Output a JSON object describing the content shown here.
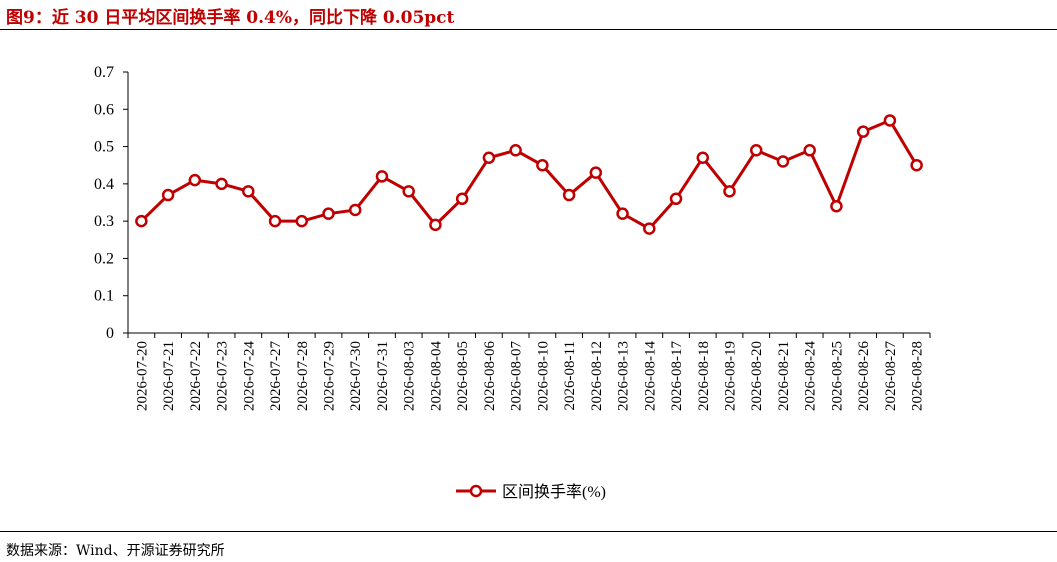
{
  "header": {
    "title": "图9：近 30 日平均区间换手率 0.4%，同比下降 0.05pct"
  },
  "footer": {
    "source": "数据来源：Wind、开源证券研究所"
  },
  "colors": {
    "series": "#c00000",
    "accent": "#c00000"
  },
  "chart_data": {
    "type": "line",
    "title": "",
    "xlabel": "",
    "ylabel": "",
    "ylim": [
      0,
      0.7
    ],
    "yticks": [
      "0",
      "0.1",
      "0.2",
      "0.3",
      "0.4",
      "0.5",
      "0.6",
      "0.7"
    ],
    "grid": false,
    "legend_position": "bottom-center",
    "categories": [
      "2026-07-20",
      "2026-07-21",
      "2026-07-22",
      "2026-07-23",
      "2026-07-24",
      "2026-07-27",
      "2026-07-28",
      "2026-07-29",
      "2026-07-30",
      "2026-07-31",
      "2026-08-03",
      "2026-08-04",
      "2026-08-05",
      "2026-08-06",
      "2026-08-07",
      "2026-08-10",
      "2026-08-11",
      "2026-08-12",
      "2026-08-13",
      "2026-08-14",
      "2026-08-17",
      "2026-08-18",
      "2026-08-19",
      "2026-08-20",
      "2026-08-21",
      "2026-08-24",
      "2026-08-25",
      "2026-08-26",
      "2026-08-27",
      "2026-08-28"
    ],
    "series": [
      {
        "name": "区间换手率(%)",
        "values": [
          0.3,
          0.37,
          0.41,
          0.4,
          0.38,
          0.3,
          0.3,
          0.32,
          0.33,
          0.42,
          0.38,
          0.29,
          0.36,
          0.47,
          0.49,
          0.45,
          0.37,
          0.43,
          0.32,
          0.28,
          0.36,
          0.47,
          0.38,
          0.49,
          0.46,
          0.49,
          0.34,
          0.54,
          0.57,
          0.45
        ]
      }
    ]
  }
}
